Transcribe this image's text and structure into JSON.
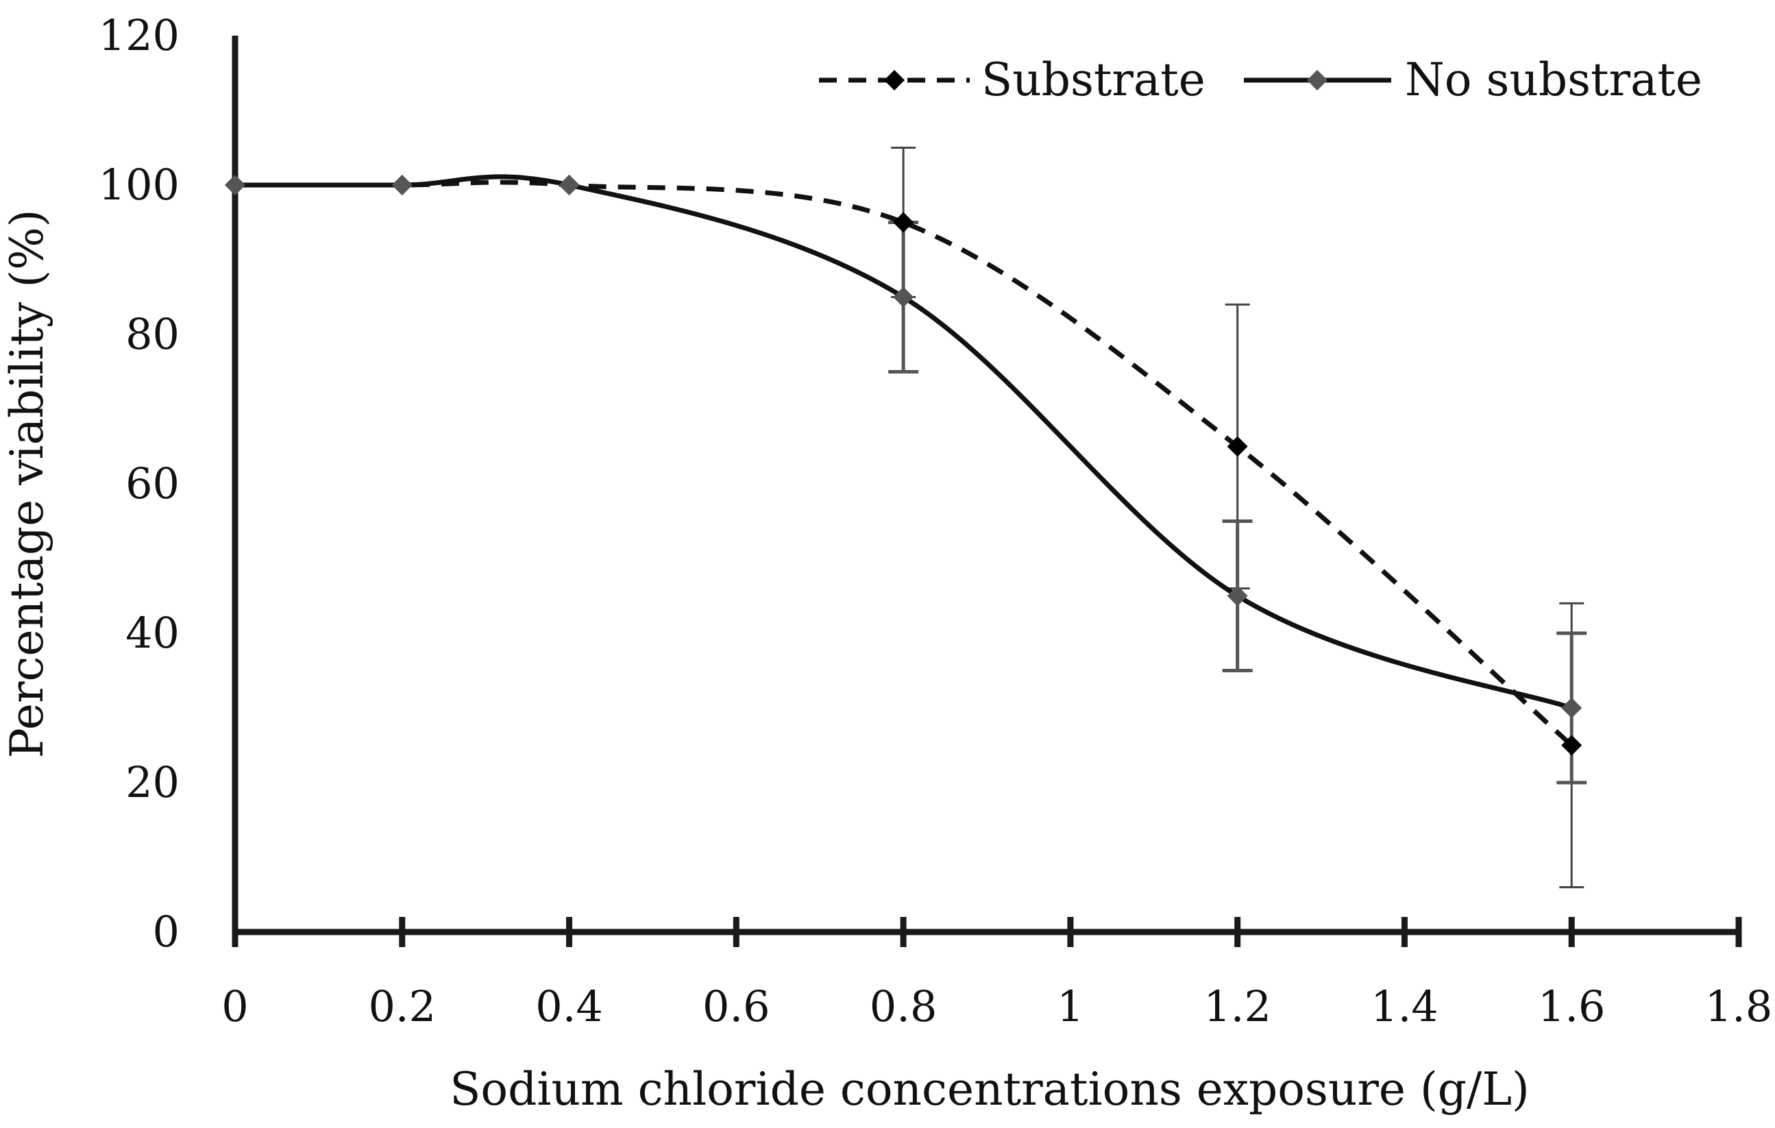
{
  "chart_data": {
    "type": "line",
    "title": "",
    "xlabel": "Sodium chloride concentrations exposure (g/L)",
    "ylabel": "Percentage viability (%)",
    "xlim": [
      0,
      1.8
    ],
    "ylim": [
      0,
      120
    ],
    "x_ticks": [
      "0",
      "0.2",
      "0.4",
      "0.6",
      "0.8",
      "1",
      "1.2",
      "1.4",
      "1.6",
      "1.8"
    ],
    "y_ticks": [
      "0",
      "20",
      "40",
      "60",
      "80",
      "100",
      "120"
    ],
    "grid": false,
    "legend_position": "top-right",
    "series": [
      {
        "name": "Substrate",
        "line_style": "dashed",
        "marker": "diamond",
        "color": "#111111",
        "points": [
          {
            "x": 0,
            "y": 100,
            "err": 0
          },
          {
            "x": 0.2,
            "y": 100,
            "err": 0
          },
          {
            "x": 0.4,
            "y": 100,
            "err": 0
          },
          {
            "x": 0.8,
            "y": 95,
            "err": 10
          },
          {
            "x": 1.2,
            "y": 65,
            "err": 19
          },
          {
            "x": 1.6,
            "y": 25,
            "err": 19
          }
        ]
      },
      {
        "name": "No substrate",
        "line_style": "solid",
        "marker": "diamond",
        "color": "#111111",
        "marker_color": "#555555",
        "points": [
          {
            "x": 0,
            "y": 100,
            "err": 0
          },
          {
            "x": 0.2,
            "y": 100,
            "err": 0
          },
          {
            "x": 0.4,
            "y": 100,
            "err": 0
          },
          {
            "x": 0.8,
            "y": 85,
            "err": 10
          },
          {
            "x": 1.2,
            "y": 45,
            "err": 10
          },
          {
            "x": 1.6,
            "y": 30,
            "err": 10
          }
        ]
      }
    ]
  }
}
